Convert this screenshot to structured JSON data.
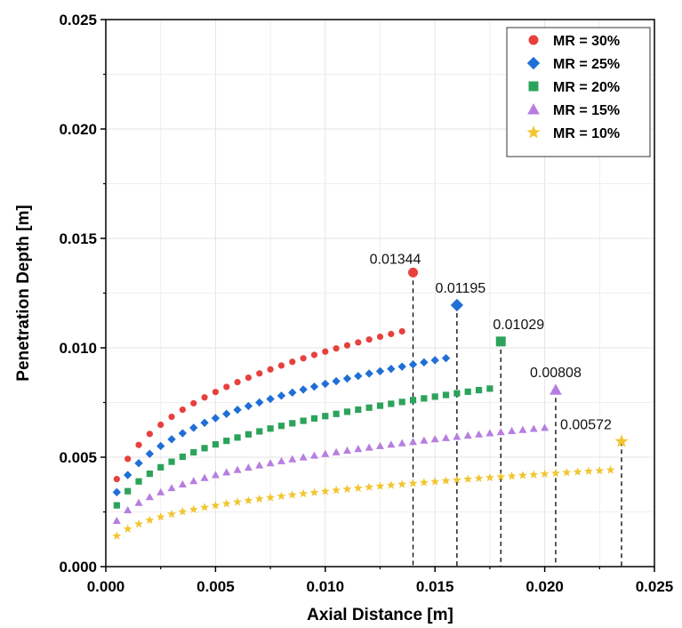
{
  "chart_data": {
    "type": "scatter",
    "xlabel": "Axial Distance [m]",
    "ylabel": "Penetration Depth [m]",
    "xlim": [
      0,
      0.025
    ],
    "ylim": [
      0,
      0.025
    ],
    "x_ticks": [
      "0.000",
      "0.005",
      "0.010",
      "0.015",
      "0.020",
      "0.025"
    ],
    "y_ticks": [
      "0.000",
      "0.005",
      "0.010",
      "0.015",
      "0.020",
      "0.025"
    ],
    "grid": true,
    "legend_position": "top-right",
    "series": [
      {
        "name": "MR = 30%",
        "marker": "circle",
        "color": "#e8403d",
        "coef": 0.004,
        "x_end": 0.014,
        "end_value": 0.01344,
        "end_label": "0.01344"
      },
      {
        "name": "MR = 25%",
        "marker": "diamond",
        "color": "#1f6fd6",
        "coef": 0.0034,
        "x_end": 0.016,
        "end_value": 0.01195,
        "end_label": "0.01195"
      },
      {
        "name": "MR = 20%",
        "marker": "square",
        "color": "#2ca35a",
        "coef": 0.0028,
        "x_end": 0.018,
        "end_value": 0.01029,
        "end_label": "0.01029"
      },
      {
        "name": "MR = 15%",
        "marker": "triangle",
        "color": "#b77ee0",
        "coef": 0.0021,
        "x_end": 0.0205,
        "end_value": 0.00808,
        "end_label": "0.00808"
      },
      {
        "name": "MR = 10%",
        "marker": "star",
        "color": "#f2c531",
        "coef": 0.0014,
        "x_end": 0.0235,
        "end_value": 0.00572,
        "end_label": "0.00572"
      }
    ],
    "x_start": 0.0005,
    "x_step": 0.0005
  }
}
